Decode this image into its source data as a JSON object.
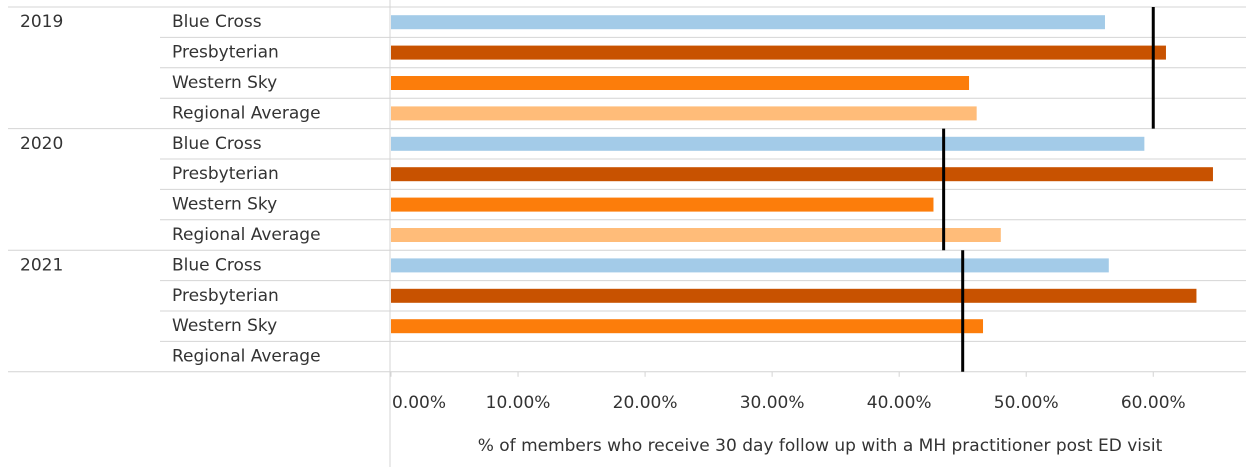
{
  "chart_data": {
    "type": "grouped-hbar",
    "categories": [
      "2019",
      "2020",
      "2021"
    ],
    "series": [
      {
        "name": "Blue Cross",
        "color": "#a3cbe8",
        "values": [
          56.2,
          59.3,
          56.5
        ]
      },
      {
        "name": "Presbyterian",
        "color": "#c85200",
        "values": [
          61.0,
          64.7,
          63.4
        ]
      },
      {
        "name": "Western Sky",
        "color": "#fc7d0b",
        "values": [
          45.5,
          42.7,
          46.6
        ]
      },
      {
        "name": "Regional Average",
        "color": "#ffbc79",
        "values": [
          46.1,
          48.0,
          null
        ]
      }
    ],
    "reference_values": [
      60.0,
      43.5,
      45.0
    ],
    "reference_color": "#000000",
    "xlim": [
      0,
      67.3
    ],
    "xticks": [
      {
        "value": 0,
        "label": "0.00%"
      },
      {
        "value": 10,
        "label": "10.00%"
      },
      {
        "value": 20,
        "label": "20.00%"
      },
      {
        "value": 30,
        "label": "30.00%"
      },
      {
        "value": 40,
        "label": "40.00%"
      },
      {
        "value": 50,
        "label": "50.00%"
      },
      {
        "value": 60,
        "label": "60.00%"
      }
    ],
    "x_label": "% of members who receive 30 day follow up with a MH practitioner post ED visit"
  }
}
